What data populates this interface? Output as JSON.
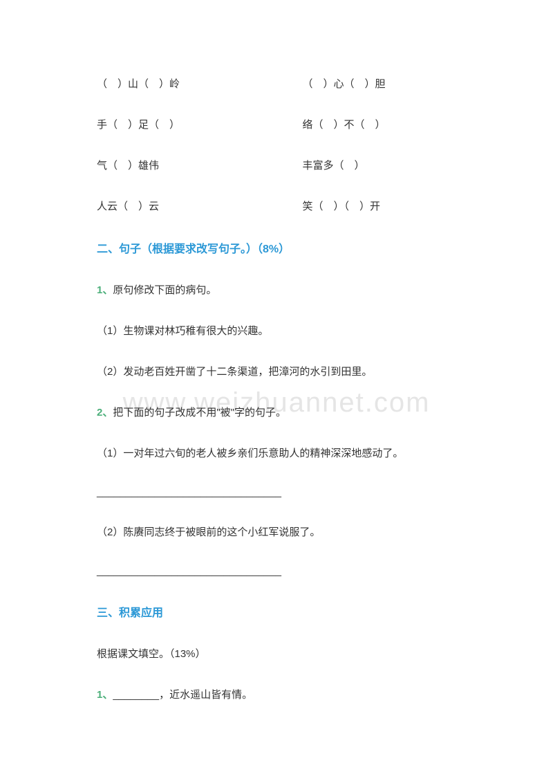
{
  "fillBlanks": {
    "rows": [
      {
        "left": "（　）山（　）岭",
        "right": "（　）心（　）胆"
      },
      {
        "left": "手（　）足（　）",
        "right": "络（　）不（　）"
      },
      {
        "left": "气（　）雄伟",
        "right": "丰富多（　）"
      },
      {
        "left": "人云（　）云",
        "right": "笑（　）（　）开"
      }
    ]
  },
  "section2": {
    "heading": "二、句子（根据要求改写句子。）（8%）",
    "q1": {
      "num": "1、",
      "text": "原句修改下面的病句。",
      "sub1": "（1）生物课对林巧稚有很大的兴趣。",
      "sub2": "（2）发动老百姓开凿了十二条渠道，把漳河的水引到田里。"
    },
    "q2": {
      "num": "2、",
      "text": "把下面的句子改成不用\"被\"字的句子。",
      "sub1": "（1）一对年过六旬的老人被乡亲们乐意助人的精神深深地感动了。",
      "line1": "________________________________",
      "sub2": "（2）陈赓同志终于被眼前的这个小红军说服了。",
      "line2": "________________________________"
    }
  },
  "section3": {
    "heading": "三、积累应用",
    "intro": "根据课文填空。（13%）",
    "q1": {
      "num": "1、",
      "blank": "________",
      "text": "，近水遥山皆有情。"
    }
  },
  "watermark": "www.weizhuannet.com"
}
